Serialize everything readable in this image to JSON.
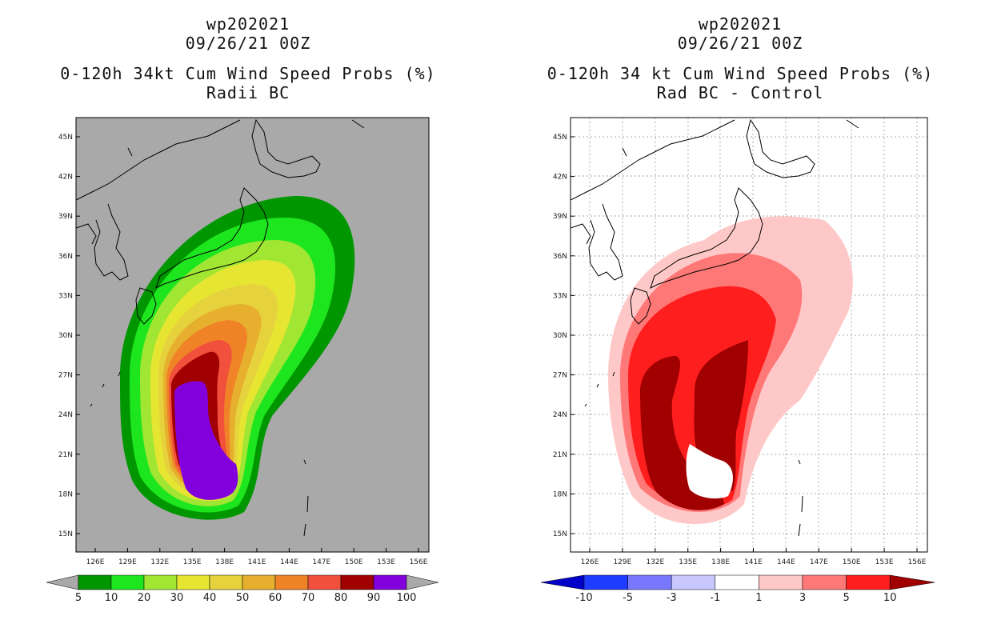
{
  "left_panel": {
    "storm_id": "wp202021",
    "datetime": "09/26/21 00Z",
    "title": "0-120h 34kt Cum Wind Speed Probs (%)",
    "subtitle": "Radii BC",
    "colorbar": {
      "labels": [
        "5",
        "10",
        "20",
        "30",
        "40",
        "50",
        "60",
        "70",
        "80",
        "90",
        "100"
      ],
      "colors": [
        "#009600",
        "#1ee61e",
        "#a0e632",
        "#e6e632",
        "#e6d23c",
        "#e6af2d",
        "#f08228",
        "#f0503c",
        "#a00000",
        "#8200dc"
      ]
    }
  },
  "right_panel": {
    "storm_id": "wp202021",
    "datetime": "09/26/21 00Z",
    "title": "0-120h 34 kt Cum Wind Speed Probs (%)",
    "subtitle": "Rad BC - Control",
    "colorbar": {
      "labels": [
        "-10",
        "-5",
        "-3",
        "-1",
        "1",
        "3",
        "5",
        "10"
      ],
      "colors": [
        "#0000c8",
        "#1e3cff",
        "#7878ff",
        "#c8c8ff",
        "#ffffff",
        "#ffc8c8",
        "#ff7878",
        "#ff1e1e",
        "#a00000"
      ]
    }
  },
  "axes": {
    "lat_labels": [
      "45N",
      "42N",
      "39N",
      "36N",
      "33N",
      "30N",
      "27N",
      "24N",
      "21N",
      "18N",
      "15N"
    ],
    "lon_labels": [
      "126E",
      "129E",
      "132E",
      "135E",
      "138E",
      "141E",
      "144E",
      "147E",
      "150E",
      "153E",
      "156E"
    ]
  },
  "colors": {
    "land_bg": "#a9a9a9",
    "coast": "#000000"
  }
}
